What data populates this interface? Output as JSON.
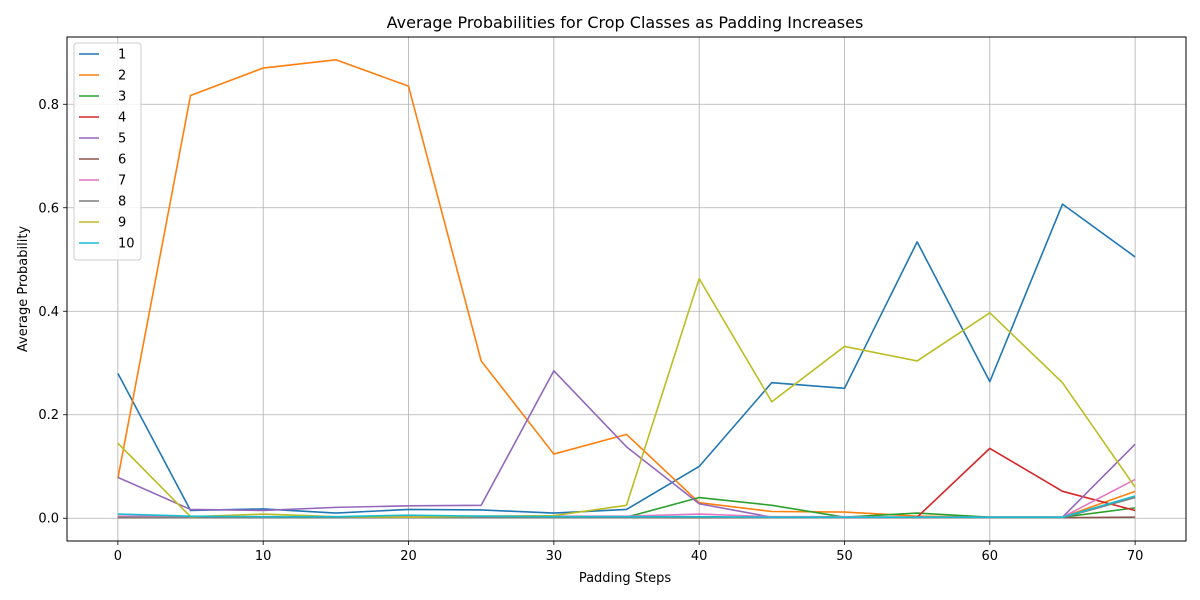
{
  "chart_data": {
    "type": "line",
    "title": "Average Probabilities for Crop Classes as Padding Increases",
    "xlabel": "Padding Steps",
    "ylabel": "Average Probability",
    "xlim": [
      -3.5,
      73.5
    ],
    "ylim": [
      -0.044,
      0.93
    ],
    "xticks": [
      0,
      10,
      20,
      30,
      40,
      50,
      60,
      70
    ],
    "yticks": [
      0.0,
      0.2,
      0.4,
      0.6,
      0.8
    ],
    "ytick_labels": [
      "0.0",
      "0.2",
      "0.4",
      "0.6",
      "0.8"
    ],
    "grid": true,
    "legend_position": "upper left",
    "x": [
      0,
      5,
      10,
      15,
      20,
      25,
      30,
      35,
      40,
      45,
      50,
      55,
      60,
      65,
      70
    ],
    "series": [
      {
        "name": "1",
        "color": "#1f77b4",
        "values": [
          0.28,
          0.015,
          0.018,
          0.01,
          0.017,
          0.016,
          0.01,
          0.017,
          0.1,
          0.262,
          0.251,
          0.534,
          0.264,
          0.607,
          0.505
        ]
      },
      {
        "name": "2",
        "color": "#ff7f0e",
        "values": [
          0.077,
          0.817,
          0.87,
          0.886,
          0.835,
          0.304,
          0.124,
          0.162,
          0.03,
          0.013,
          0.012,
          0.004,
          0.002,
          0.002,
          0.052
        ]
      },
      {
        "name": "3",
        "color": "#2ca02c",
        "values": [
          0.003,
          0.002,
          0.002,
          0.002,
          0.002,
          0.002,
          0.002,
          0.002,
          0.04,
          0.025,
          0.002,
          0.01,
          0.002,
          0.002,
          0.02
        ]
      },
      {
        "name": "4",
        "color": "#d62728",
        "values": [
          0.003,
          0.001,
          0.001,
          0.001,
          0.001,
          0.001,
          0.001,
          0.001,
          0.002,
          0.001,
          0.001,
          0.002,
          0.135,
          0.052,
          0.015
        ]
      },
      {
        "name": "5",
        "color": "#9467bd",
        "values": [
          0.079,
          0.017,
          0.015,
          0.021,
          0.024,
          0.025,
          0.285,
          0.138,
          0.028,
          0.002,
          0.002,
          0.002,
          0.002,
          0.002,
          0.143
        ]
      },
      {
        "name": "6",
        "color": "#8c564b",
        "values": [
          0.001,
          0.001,
          0.001,
          0.001,
          0.001,
          0.001,
          0.001,
          0.001,
          0.001,
          0.001,
          0.001,
          0.001,
          0.001,
          0.001,
          0.002
        ]
      },
      {
        "name": "7",
        "color": "#e377c2",
        "values": [
          0.004,
          0.003,
          0.003,
          0.002,
          0.004,
          0.004,
          0.004,
          0.004,
          0.008,
          0.003,
          0.003,
          0.002,
          0.002,
          0.002,
          0.075
        ]
      },
      {
        "name": "8",
        "color": "#7f7f7f",
        "values": [
          0.002,
          0.001,
          0.001,
          0.001,
          0.001,
          0.001,
          0.001,
          0.001,
          0.002,
          0.001,
          0.001,
          0.001,
          0.001,
          0.001,
          0.04
        ]
      },
      {
        "name": "9",
        "color": "#bcbd22",
        "values": [
          0.145,
          0.003,
          0.008,
          0.003,
          0.002,
          0.004,
          0.005,
          0.025,
          0.463,
          0.225,
          0.332,
          0.304,
          0.397,
          0.262,
          0.06
        ]
      },
      {
        "name": "10",
        "color": "#17becf",
        "values": [
          0.008,
          0.004,
          0.003,
          0.003,
          0.006,
          0.004,
          0.003,
          0.003,
          0.003,
          0.002,
          0.002,
          0.002,
          0.002,
          0.002,
          0.043
        ]
      }
    ]
  }
}
